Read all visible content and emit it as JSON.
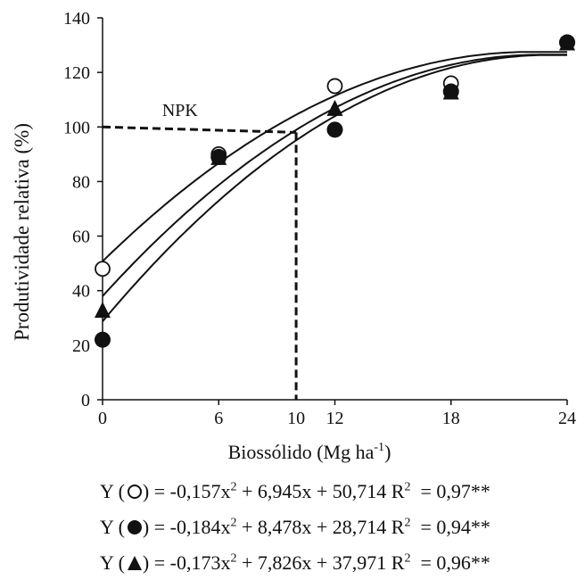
{
  "chart_data": {
    "type": "scatter",
    "xlabel": "Biossólido (Mg ha",
    "xlabel_sup": "-1",
    "xlabel_close": ")",
    "ylabel": "Produtividade relativa (%)",
    "xlim": [
      0,
      24
    ],
    "ylim": [
      0,
      140
    ],
    "xticks": [
      0,
      6,
      10,
      12,
      18,
      24
    ],
    "yticks": [
      0,
      20,
      40,
      60,
      80,
      100,
      120,
      140
    ],
    "grid": false,
    "series": [
      {
        "marker": "circle-open",
        "x": [
          0,
          6,
          12,
          18,
          24
        ],
        "y": [
          48,
          90,
          115,
          116,
          131
        ],
        "fit": {
          "a": -0.157,
          "b": 6.945,
          "c": 50.714
        }
      },
      {
        "marker": "circle-filled",
        "x": [
          0,
          6,
          12,
          18,
          24
        ],
        "y": [
          22,
          89,
          99,
          113,
          131
        ],
        "fit": {
          "a": -0.184,
          "b": 8.478,
          "c": 28.714
        }
      },
      {
        "marker": "triangle-filled",
        "x": [
          0,
          6,
          12,
          18,
          24
        ],
        "y": [
          33,
          89,
          107,
          113,
          131
        ],
        "fit": {
          "a": -0.173,
          "b": 7.826,
          "c": 37.971
        }
      }
    ],
    "reference": {
      "label": "NPK",
      "y": 100,
      "x_end": 10
    }
  },
  "equations": [
    {
      "prefix": "Y (",
      "marker": "circle-open",
      "close": ") =",
      "text": "-0,157x",
      "mid": " + 6,945x + 50,714 R",
      "r2": "= 0,97**"
    },
    {
      "prefix": "Y (",
      "marker": "circle-filled",
      "close": ") =",
      "text": "-0,184x",
      "mid": " + 8,478x + 28,714 R",
      "r2": "= 0,94**"
    },
    {
      "prefix": "Y (",
      "marker": "triangle-filled",
      "close": ") =",
      "text": "-0,173x",
      "mid": " + 7,826x + 37,971 R",
      "r2": "= 0,96**"
    }
  ]
}
